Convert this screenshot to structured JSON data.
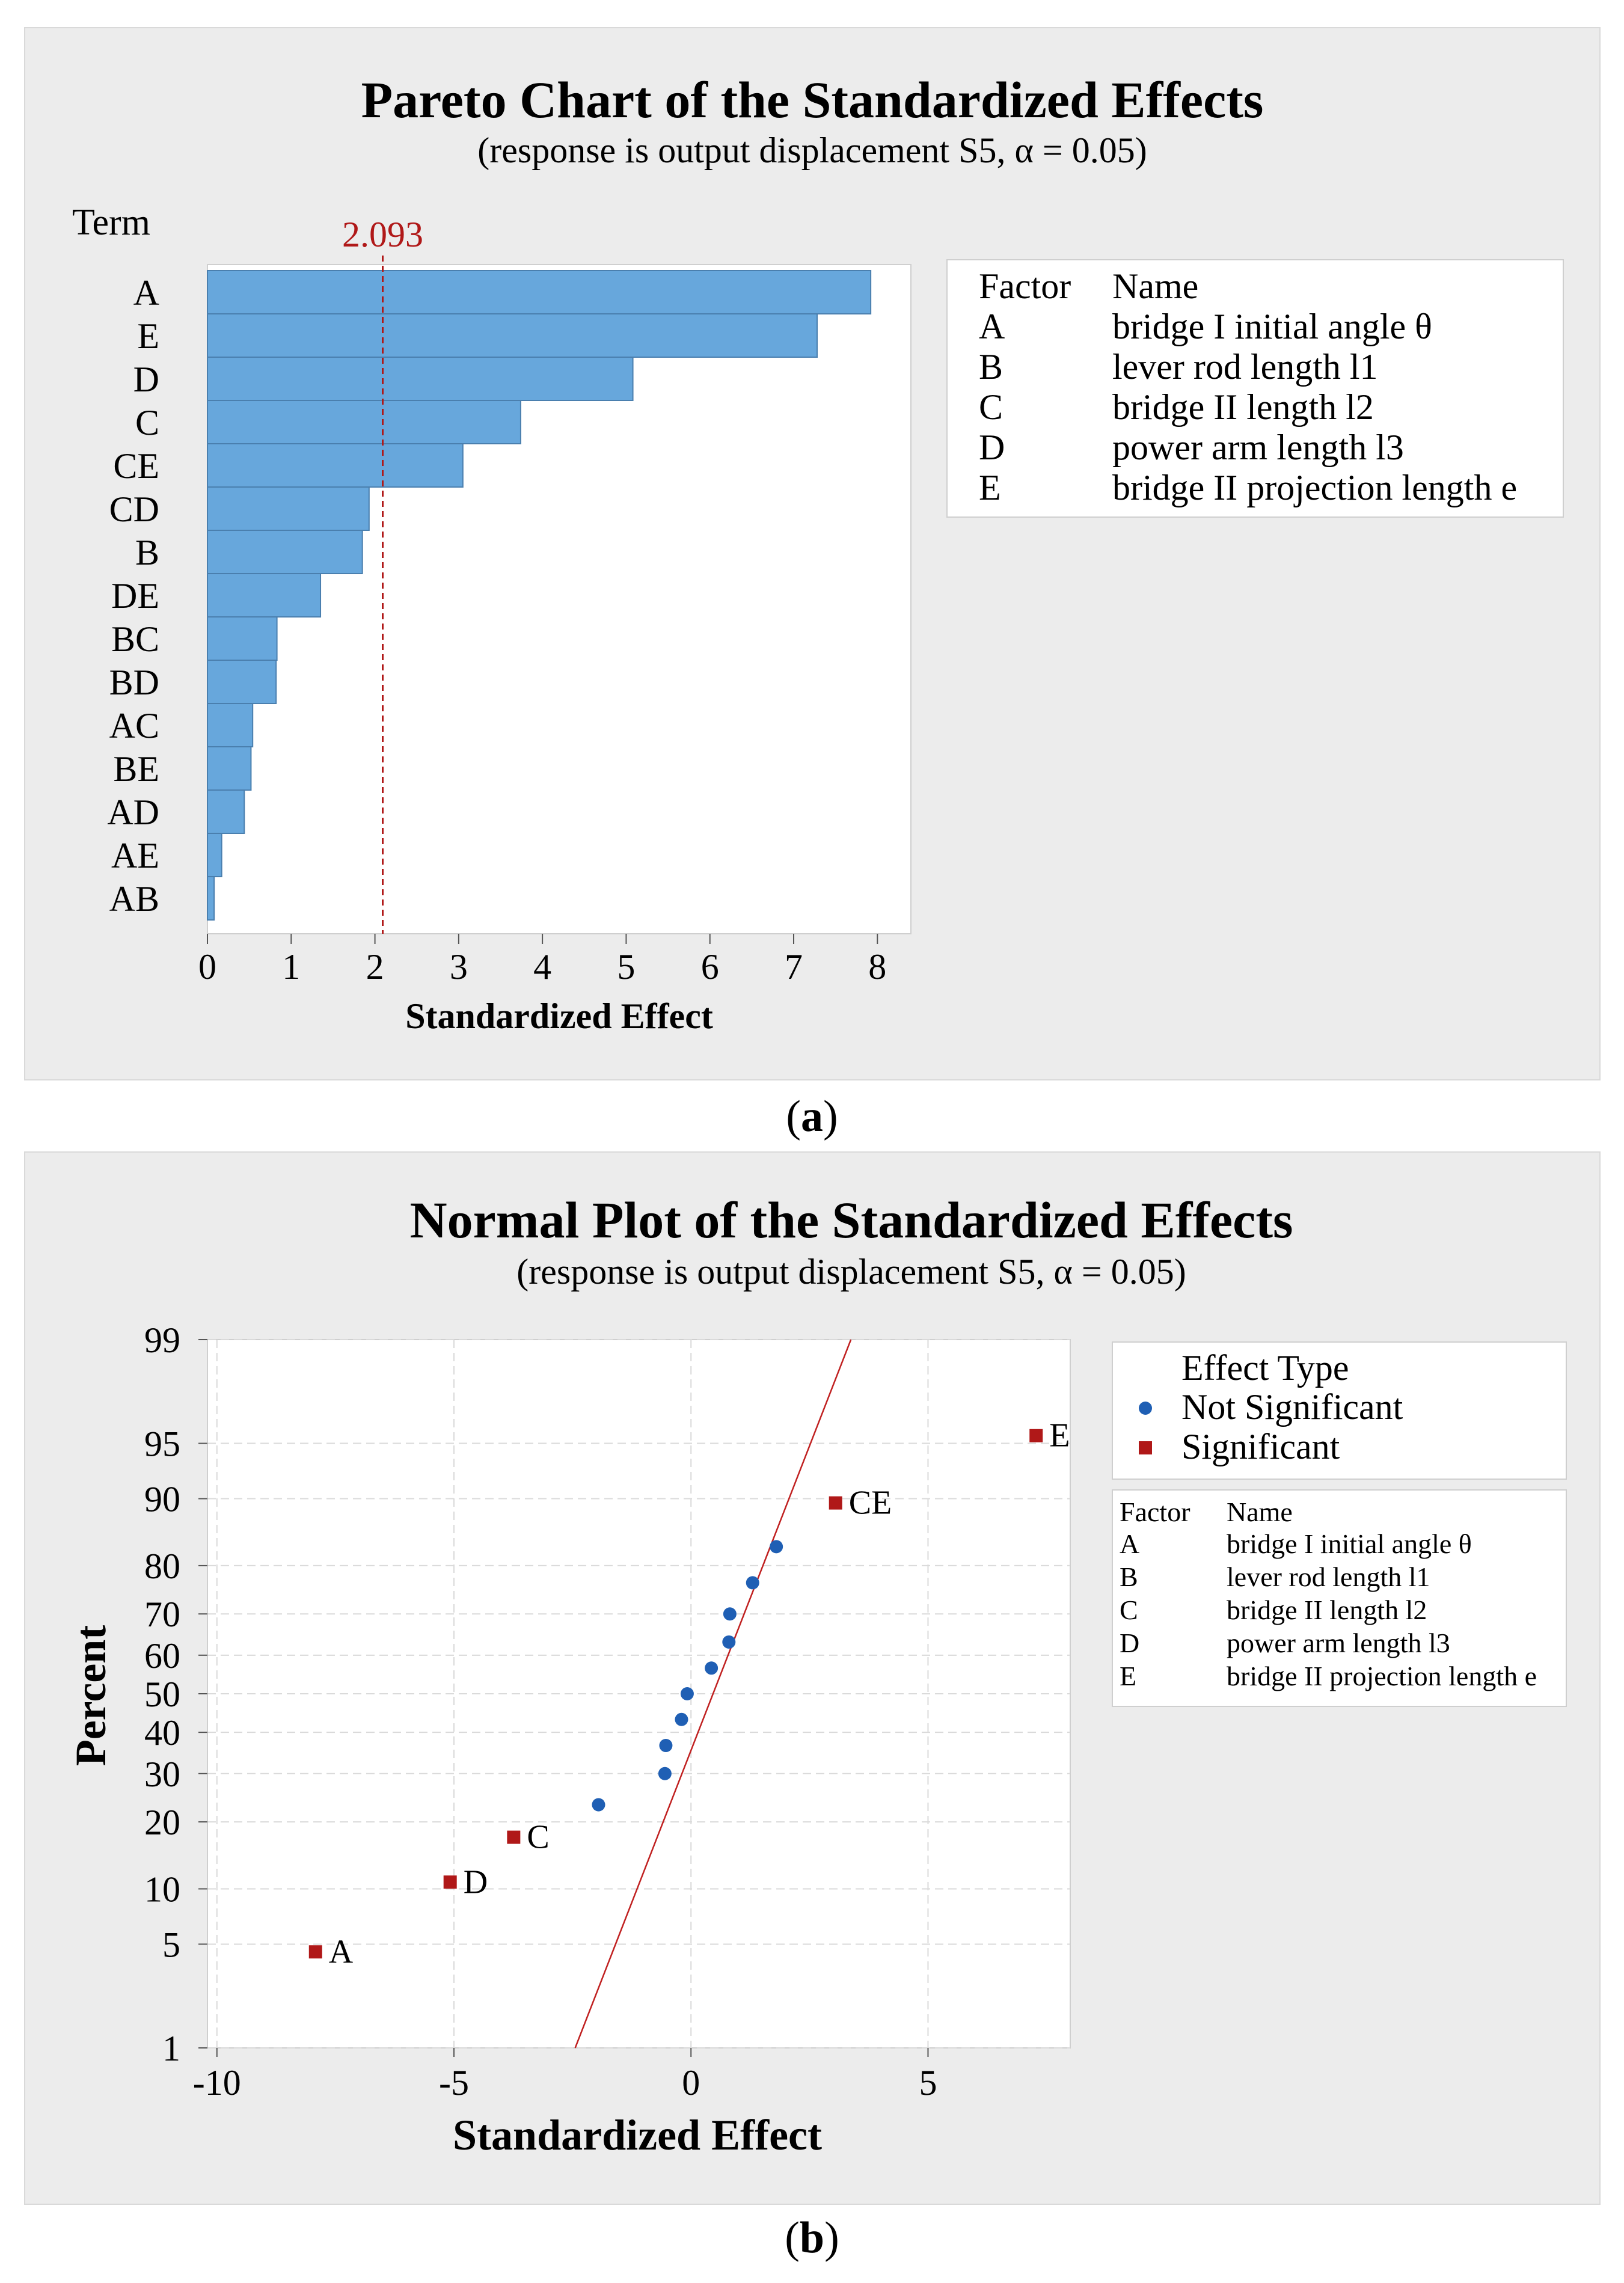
{
  "panel_a": {
    "title": "Pareto Chart of the Standardized Effects",
    "subtitle": "(response is output displacement S5, α = 0.05)",
    "term_label": "Term",
    "caption_letter": "a"
  },
  "panel_b": {
    "title": "Normal Plot of the Standardized Effects",
    "subtitle": "(response is output displacement S5, α = 0.05)",
    "caption_letter": "b"
  },
  "factor_legend": {
    "header_factor": "Factor",
    "header_name": "Name",
    "rows": [
      {
        "factor": "A",
        "name": "bridge I initial angle θ"
      },
      {
        "factor": "B",
        "name": "lever rod length l1"
      },
      {
        "factor": "C",
        "name": "bridge II length l2"
      },
      {
        "factor": "D",
        "name": "power arm length l3"
      },
      {
        "factor": "E",
        "name": "bridge II projection length e"
      }
    ]
  },
  "effect_legend": {
    "title": "Effect Type",
    "items": [
      {
        "label": "Not Significant",
        "color": "#1f5fb4",
        "shape": "circle"
      },
      {
        "label": "Significant",
        "color": "#b01818",
        "shape": "square"
      }
    ]
  },
  "chart_data": [
    {
      "type": "bar",
      "orientation": "horizontal",
      "title": "Pareto Chart of the Standardized Effects",
      "subtitle": "(response is output displacement S5, α = 0.05)",
      "xlabel": "Standardized Effect",
      "ylabel": "Term",
      "categories": [
        "A",
        "E",
        "D",
        "C",
        "CE",
        "CD",
        "B",
        "DE",
        "BC",
        "BD",
        "AC",
        "BE",
        "AD",
        "AE",
        "AB"
      ],
      "values": [
        7.92,
        7.28,
        5.08,
        3.74,
        3.05,
        1.93,
        1.85,
        1.35,
        0.83,
        0.82,
        0.54,
        0.52,
        0.44,
        0.17,
        0.08
      ],
      "xlim": [
        0,
        8.4
      ],
      "xticks": [
        0,
        1,
        2,
        3,
        4,
        5,
        6,
        7,
        8
      ],
      "reference_line": {
        "value": 2.093,
        "label": "2.093",
        "color": "#b01818"
      },
      "bar_color": "#67a7dc",
      "grid": false
    },
    {
      "type": "scatter",
      "title": "Normal Plot of the Standardized Effects",
      "subtitle": "(response is output displacement S5, α = 0.05)",
      "xlabel": "Standardized Effect",
      "ylabel": "Percent",
      "xlim": [
        -10.2,
        8
      ],
      "xticks": [
        -10,
        -5,
        0,
        5
      ],
      "yscale": "normal-probability",
      "yticks": [
        1,
        5,
        10,
        20,
        30,
        40,
        50,
        60,
        70,
        80,
        90,
        95,
        99
      ],
      "grid": true,
      "fit_line": {
        "color": "#c02020",
        "slope_sd": 1.0
      },
      "series": [
        {
          "name": "Not Significant",
          "color": "#1f5fb4",
          "marker": "circle",
          "points": [
            {
              "x": -1.95,
              "y": 23.3
            },
            {
              "x": -0.55,
              "y": 30.0
            },
            {
              "x": -0.53,
              "y": 36.7
            },
            {
              "x": -0.2,
              "y": 43.3
            },
            {
              "x": -0.08,
              "y": 50.0
            },
            {
              "x": 0.43,
              "y": 56.7
            },
            {
              "x": 0.8,
              "y": 63.3
            },
            {
              "x": 0.82,
              "y": 70.0
            },
            {
              "x": 1.3,
              "y": 76.7
            },
            {
              "x": 1.8,
              "y": 83.3
            }
          ]
        },
        {
          "name": "Significant",
          "color": "#b01818",
          "marker": "square",
          "points": [
            {
              "x": -7.92,
              "y": 4.5,
              "label": "A"
            },
            {
              "x": -5.08,
              "y": 10.8,
              "label": "D"
            },
            {
              "x": -3.74,
              "y": 17.3,
              "label": "C"
            },
            {
              "x": 3.05,
              "y": 89.5,
              "label": "CE"
            },
            {
              "x": 7.28,
              "y": 95.5,
              "label": "E"
            }
          ]
        }
      ]
    }
  ]
}
